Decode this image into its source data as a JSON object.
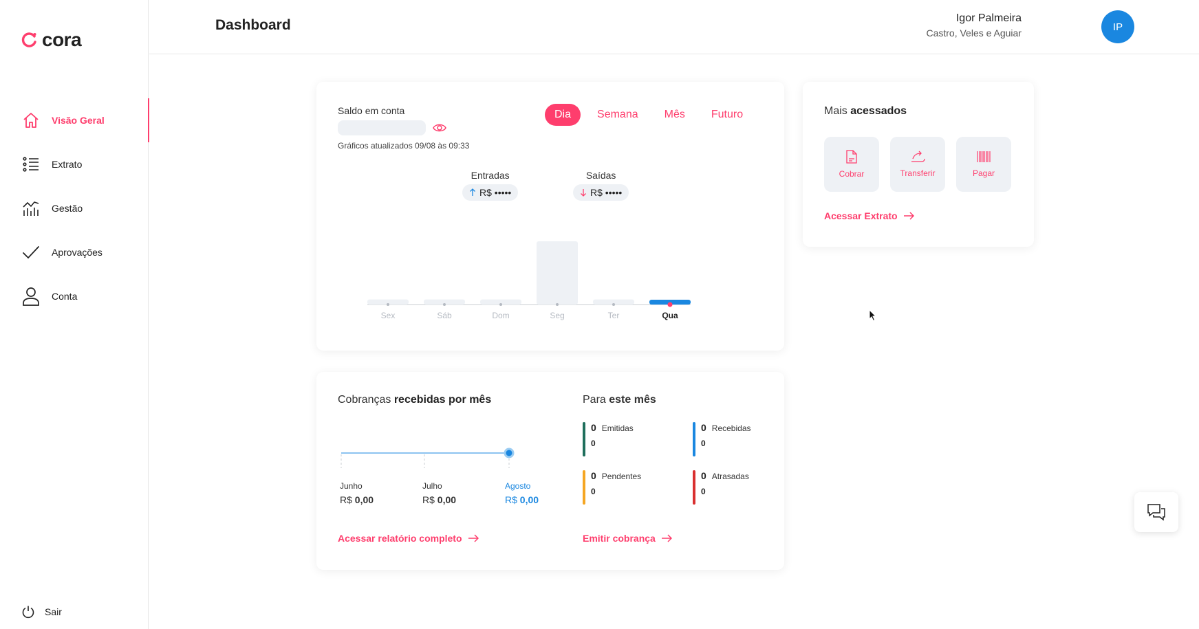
{
  "brand": {
    "name": "cora",
    "accent": "#fe3e6d",
    "blue": "#1a87e0"
  },
  "sidebar": {
    "items": [
      {
        "label": "Visão Geral",
        "icon": "home-icon",
        "active": true
      },
      {
        "label": "Extrato",
        "icon": "list-icon",
        "active": false
      },
      {
        "label": "Gestão",
        "icon": "chart-icon",
        "active": false
      },
      {
        "label": "Aprovações",
        "icon": "check-icon",
        "active": false
      },
      {
        "label": "Conta",
        "icon": "user-icon",
        "active": false
      }
    ],
    "logout_label": "Sair"
  },
  "header": {
    "title": "Dashboard",
    "user_name": "Igor Palmeira",
    "user_company": "Castro, Veles e Aguiar",
    "avatar_initials": "IP"
  },
  "balance": {
    "label": "Saldo em conta",
    "updated": "Gráficos atualizados 09/08 às 09:33",
    "tabs": [
      "Dia",
      "Semana",
      "Mês",
      "Futuro"
    ],
    "active_tab": "Dia",
    "entradas_title": "Entradas",
    "entradas_value": "R$ •••••",
    "saidas_title": "Saídas",
    "saidas_value": "R$ •••••"
  },
  "chart_data": {
    "type": "bar",
    "categories": [
      "Sex",
      "Sáb",
      "Dom",
      "Seg",
      "Ter",
      "Qua"
    ],
    "values": [
      0.08,
      0.08,
      0.08,
      1.0,
      0.08,
      0.08
    ],
    "highlight": "Qua",
    "title": "",
    "xlabel": "",
    "ylabel": ""
  },
  "quick": {
    "title_prefix": "Mais",
    "title_bold": "acessados",
    "buttons": [
      {
        "label": "Cobrar",
        "icon": "document-icon"
      },
      {
        "label": "Transferir",
        "icon": "transfer-icon"
      },
      {
        "label": "Pagar",
        "icon": "barcode-icon"
      }
    ],
    "link": "Acessar Extrato"
  },
  "charges": {
    "title_prefix": "Cobranças",
    "title_bold": "recebidas por mês",
    "months": [
      {
        "name": "Junho",
        "currency": "R$",
        "value": "0,00"
      },
      {
        "name": "Julho",
        "currency": "R$",
        "value": "0,00"
      },
      {
        "name": "Agosto",
        "currency": "R$",
        "value": "0,00"
      }
    ],
    "link": "Acessar relatório completo",
    "month_title_prefix": "Para",
    "month_title_bold": "este mês",
    "stats": [
      {
        "count": "0",
        "name": "Emitidas",
        "amount": "0",
        "color": "#1f6f5c"
      },
      {
        "count": "0",
        "name": "Recebidas",
        "amount": "0",
        "color": "#1a87e0"
      },
      {
        "count": "0",
        "name": "Pendentes",
        "amount": "0",
        "color": "#f5a623"
      },
      {
        "count": "0",
        "name": "Atrasadas",
        "amount": "0",
        "color": "#d93030"
      }
    ],
    "emit_link": "Emitir cobrança"
  }
}
